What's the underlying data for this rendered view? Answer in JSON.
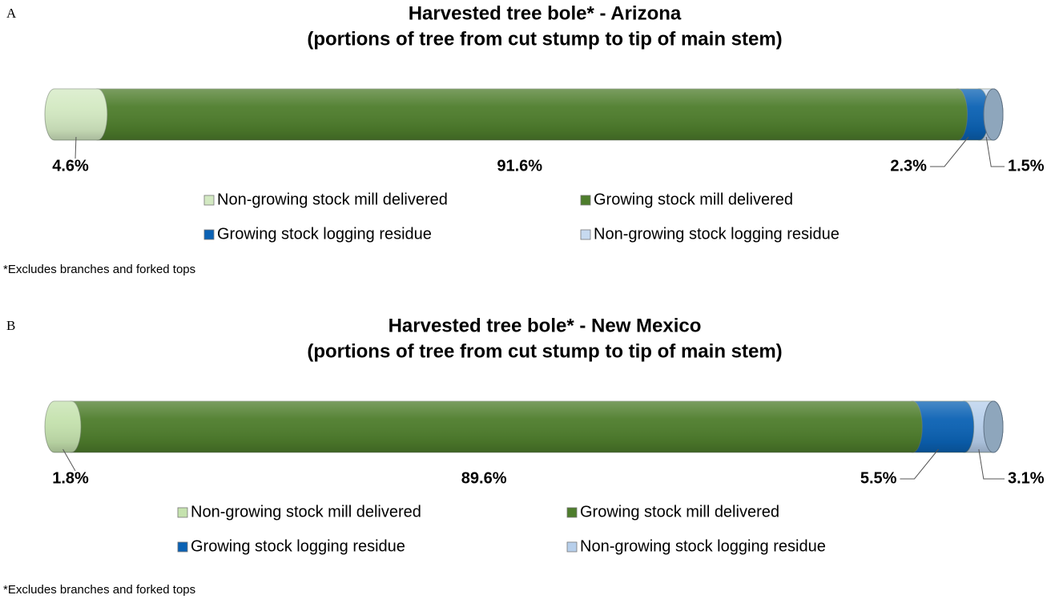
{
  "chart_data": [
    {
      "type": "bar",
      "panel": "A",
      "title": "Harvested tree bole*  - Arizona",
      "subtitle": "(portions of tree from cut stump to tip of main stem)",
      "note": "*Excludes branches and forked tops",
      "series": [
        {
          "name": "Non-growing stock mill delivered",
          "color": "#d3e9c2",
          "values": [
            4.6
          ],
          "value_labels": [
            "4.6%"
          ]
        },
        {
          "name": "Growing stock mill delivered",
          "color": "#4e7d2c",
          "values": [
            91.6
          ],
          "value_labels": [
            "91.6%"
          ]
        },
        {
          "name": "Growing stock logging residue",
          "color": "#0b62b4",
          "values": [
            2.3
          ],
          "value_labels": [
            "2.3%"
          ]
        },
        {
          "name": "Non-growing stock logging residue",
          "color": "#c7daf0",
          "values": [
            1.5
          ],
          "value_labels": [
            "1.5%"
          ]
        }
      ]
    },
    {
      "type": "bar",
      "panel": "B",
      "title": "Harvested tree bole*  - New Mexico",
      "subtitle": "(portions of tree from cut stump to tip of main stem)",
      "note": "*Excludes branches and forked tops",
      "series": [
        {
          "name": "Non-growing stock mill delivered",
          "color": "#c5e2ae",
          "values": [
            1.8
          ],
          "value_labels": [
            "1.8%"
          ]
        },
        {
          "name": "Growing stock mill delivered",
          "color": "#4e7d2c",
          "values": [
            89.6
          ],
          "value_labels": [
            "89.6%"
          ]
        },
        {
          "name": "Growing stock logging residue",
          "color": "#0b62b4",
          "values": [
            5.5
          ],
          "value_labels": [
            "5.5%"
          ]
        },
        {
          "name": "Non-growing stock logging residue",
          "color": "#b7cfeb",
          "values": [
            3.1
          ],
          "value_labels": [
            "3.1%"
          ]
        }
      ]
    }
  ]
}
